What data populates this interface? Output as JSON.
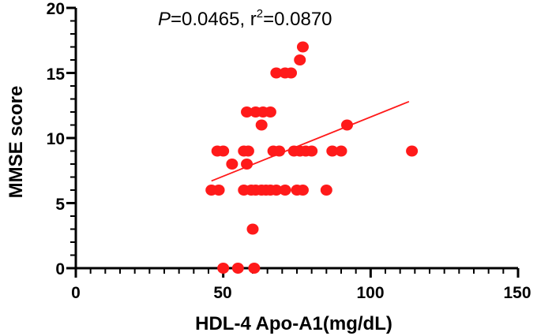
{
  "chart_data": {
    "type": "scatter",
    "xlabel": "HDL-4 Apo-A1(mg/dL)",
    "ylabel": "MMSE score",
    "xlim": [
      0,
      150
    ],
    "ylim": [
      0,
      20
    ],
    "x_ticks": [
      "0",
      "50",
      "100",
      "150"
    ],
    "y_ticks": [
      "0",
      "5",
      "10",
      "15",
      "20"
    ],
    "annotation": {
      "p_label": "P",
      "p_text": "=0.0465, r",
      "r_exponent": "2",
      "r_text": "=0.0870"
    },
    "point_color": "#ff1a1a",
    "points": [
      [
        50,
        0
      ],
      [
        55,
        0
      ],
      [
        60.5,
        0
      ],
      [
        60,
        3
      ],
      [
        46,
        6
      ],
      [
        48.5,
        6
      ],
      [
        57,
        6
      ],
      [
        59.5,
        6
      ],
      [
        61,
        6
      ],
      [
        63,
        6
      ],
      [
        64.5,
        6
      ],
      [
        66,
        6
      ],
      [
        68,
        6
      ],
      [
        71,
        6
      ],
      [
        75,
        6
      ],
      [
        77,
        6
      ],
      [
        85,
        6
      ],
      [
        53,
        8
      ],
      [
        58,
        8
      ],
      [
        48,
        9
      ],
      [
        50,
        9
      ],
      [
        57,
        9
      ],
      [
        58.5,
        9
      ],
      [
        67,
        9
      ],
      [
        69,
        9
      ],
      [
        74,
        9
      ],
      [
        76,
        9
      ],
      [
        78,
        9
      ],
      [
        80,
        9
      ],
      [
        87,
        9
      ],
      [
        90,
        9
      ],
      [
        114,
        9
      ],
      [
        92,
        11
      ],
      [
        63,
        11
      ],
      [
        58,
        12
      ],
      [
        61,
        12
      ],
      [
        63.5,
        12
      ],
      [
        66,
        12
      ],
      [
        68,
        15
      ],
      [
        71,
        15
      ],
      [
        73,
        15
      ],
      [
        76,
        16
      ],
      [
        77,
        17
      ]
    ],
    "regression": {
      "x_start": 46,
      "y_start": 6.7,
      "x_end": 113,
      "y_end": 12.8
    }
  }
}
